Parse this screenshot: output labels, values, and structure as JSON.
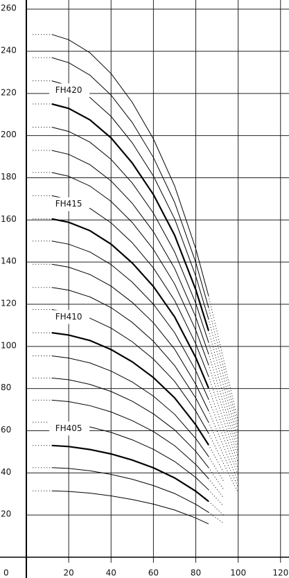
{
  "chart_data": {
    "type": "line",
    "x": [
      3,
      12,
      20,
      30,
      40,
      50,
      60,
      70,
      80,
      86,
      93,
      100
    ],
    "solid_xlim": [
      12,
      86
    ],
    "color": "#000000",
    "grid": true,
    "xlim": [
      0,
      124
    ],
    "xticks": [
      0,
      20,
      40,
      60,
      80,
      100,
      120
    ],
    "ylim": [
      0,
      264
    ],
    "yticks": [
      20,
      40,
      60,
      80,
      100,
      120,
      140,
      160,
      180,
      200,
      220,
      240,
      260
    ],
    "series": [
      {
        "values": [
          31.5,
          31.5,
          31.2,
          30.4,
          29.1,
          27.4,
          25.2,
          22.4,
          18.6,
          15.8,
          null,
          null
        ]
      },
      {
        "values": [
          42.5,
          42.5,
          42.1,
          41,
          39.3,
          37,
          34,
          30.2,
          25.1,
          21.3,
          16.2,
          null
        ]
      },
      {
        "name": "FH405",
        "values": [
          53,
          53,
          52.5,
          51.1,
          49,
          46.1,
          42.4,
          37.6,
          31.3,
          26.5,
          20.1,
          null
        ]
      },
      {
        "values": [
          64,
          64,
          63.4,
          61.8,
          59.2,
          55.7,
          51.2,
          45.4,
          37.8,
          32,
          24.3,
          null
        ]
      },
      {
        "values": [
          74.5,
          74.5,
          73.8,
          71.9,
          68.9,
          64.8,
          59.6,
          52.9,
          44,
          37.3,
          28.3,
          null
        ]
      },
      {
        "values": [
          85,
          85,
          84.2,
          82,
          78.6,
          74,
          68,
          60.4,
          50.2,
          42.5,
          32.3,
          null
        ]
      },
      {
        "values": [
          95.5,
          95.5,
          94.5,
          92.2,
          88.3,
          83.1,
          76.4,
          67.8,
          56.3,
          47.8,
          36.3,
          null
        ]
      },
      {
        "name": "FH410",
        "values": [
          106.5,
          106.5,
          105.4,
          102.8,
          98.5,
          92.7,
          85.2,
          75.6,
          62.8,
          53.3,
          40.5,
          null
        ]
      },
      {
        "values": [
          117.5,
          117.5,
          116.3,
          113.4,
          108.7,
          102.2,
          94,
          83.4,
          69.3,
          58.8,
          44.7,
          30.6
        ]
      },
      {
        "values": [
          128,
          128,
          126.7,
          123.5,
          118.4,
          111.4,
          102.4,
          90.9,
          75.5,
          64,
          48.6,
          33.3
        ]
      },
      {
        "values": [
          139,
          139,
          137.6,
          134.1,
          128.6,
          120.9,
          111.2,
          98.7,
          82,
          69.5,
          52.8,
          36.1
        ]
      },
      {
        "values": [
          150,
          150,
          148.5,
          144.8,
          138.8,
          130.5,
          120,
          106.5,
          88.5,
          75,
          57,
          39
        ]
      },
      {
        "name": "FH415",
        "values": [
          160.5,
          160.5,
          158.9,
          154.9,
          148.5,
          139.6,
          128.4,
          114,
          94.7,
          80.3,
          61,
          41.7
        ]
      },
      {
        "values": [
          171.5,
          171.5,
          169.8,
          165.5,
          158.6,
          149.2,
          137.2,
          121.8,
          101.2,
          85.8,
          65.2,
          44.6
        ]
      },
      {
        "values": [
          182.5,
          182.5,
          180.7,
          176.1,
          168.8,
          158.8,
          146,
          129.6,
          107.7,
          91.3,
          69.4,
          47.5
        ]
      },
      {
        "values": [
          193,
          193,
          191.1,
          186.2,
          178.5,
          167.9,
          154.4,
          137,
          113.9,
          96.5,
          73.3,
          50.2
        ]
      },
      {
        "values": [
          204,
          204,
          202,
          196.9,
          188.7,
          177.5,
          163.2,
          144.8,
          120.4,
          102,
          77.5,
          53
        ]
      },
      {
        "name": "FH420",
        "values": [
          215,
          215,
          212.9,
          207.5,
          198.9,
          187,
          172,
          152.7,
          126.9,
          107.5,
          81.7,
          55.9
        ]
      },
      {
        "values": [
          226,
          226,
          223.7,
          218.1,
          209.1,
          196.6,
          180.8,
          160.5,
          133.3,
          113,
          85.9,
          58.8
        ]
      },
      {
        "values": [
          237,
          237,
          234.6,
          228.7,
          219.2,
          206.2,
          189.6,
          168.3,
          139.8,
          118.5,
          90.1,
          61.6
        ]
      },
      {
        "values": [
          248,
          248,
          245.5,
          239.3,
          229.4,
          215.8,
          198.4,
          176.1,
          146.3,
          124,
          94.2,
          64.5
        ]
      }
    ]
  }
}
